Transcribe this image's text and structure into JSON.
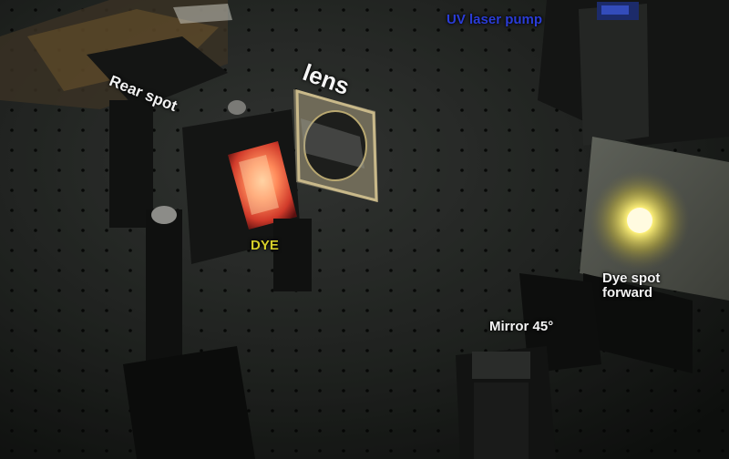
{
  "photo": {
    "labels": {
      "rear_spot": "Rear spot",
      "lens": "lens",
      "uv_pump": "UV laser pump",
      "dye": "DYE",
      "dye_spot_line1": "Dye spot",
      "dye_spot_line2": "forward",
      "mirror": "Mirror 45°"
    },
    "colors": {
      "uv_label": "#2b3dd8",
      "dye_label": "#d6cf2a",
      "dye_glow": "#ff6a4a",
      "spot_glow": "#fff27a",
      "table": "#2a2d2a"
    }
  }
}
